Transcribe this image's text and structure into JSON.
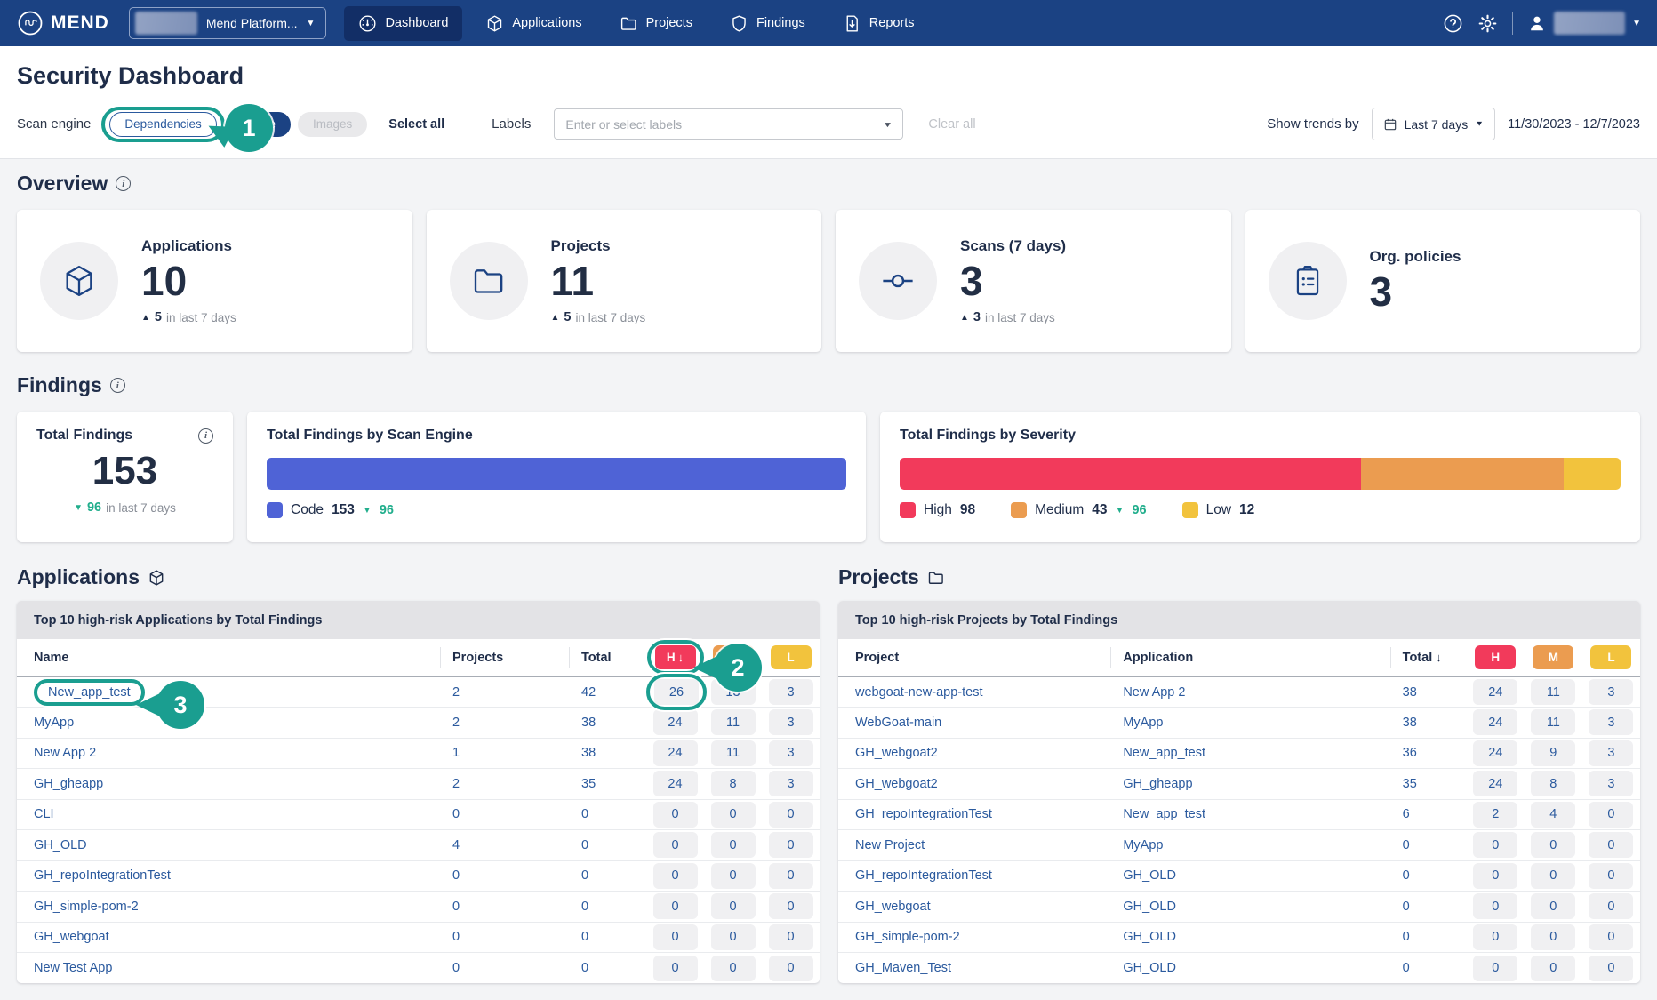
{
  "colors": {
    "navbar": "#1b4283",
    "accent_annotation": "#1a9e90",
    "high": "#f23a5b",
    "medium": "#eb9c50",
    "low": "#f2c33d",
    "engine_bar": "#4f63d6",
    "trend_green": "#21ae8c",
    "link": "#2b5a9e"
  },
  "navbar": {
    "logo_text": "MEND",
    "org_dropdown": {
      "label": "Mend Platform...",
      "redacted": true
    },
    "items": [
      {
        "label": "Dashboard",
        "icon": "gauge-icon",
        "active": true
      },
      {
        "label": "Applications",
        "icon": "cube-icon",
        "active": false
      },
      {
        "label": "Projects",
        "icon": "folder-icon",
        "active": false
      },
      {
        "label": "Findings",
        "icon": "shield-icon",
        "active": false
      },
      {
        "label": "Reports",
        "icon": "report-icon",
        "active": false
      }
    ],
    "help_icon": "help-icon",
    "settings_icon": "gear-icon",
    "user": {
      "icon": "user-icon",
      "name_redacted": true
    }
  },
  "page": {
    "title": "Security Dashboard"
  },
  "filters": {
    "scan_engine_label": "Scan engine",
    "engines": [
      {
        "label": "Dependencies",
        "state": "outlined"
      },
      {
        "label": "Code",
        "state": "selected"
      },
      {
        "label": "Images",
        "state": "disabled"
      }
    ],
    "select_all": "Select all",
    "labels_label": "Labels",
    "labels_placeholder": "Enter or select labels",
    "clear_all": "Clear all",
    "show_trends_by": "Show trends by",
    "trend_range": "Last 7 days",
    "date_range": "11/30/2023 - 12/7/2023"
  },
  "overview": {
    "title": "Overview",
    "trend_suffix": "in last 7 days",
    "cards": [
      {
        "label": "Applications",
        "value": "10",
        "trend": "5",
        "icon": "cube-icon"
      },
      {
        "label": "Projects",
        "value": "11",
        "trend": "5",
        "icon": "folder-icon"
      },
      {
        "label": "Scans (7 days)",
        "value": "3",
        "trend": "3",
        "icon": "commit-icon"
      },
      {
        "label": "Org. policies",
        "value": "3",
        "trend": null,
        "icon": "clipboard-icon"
      }
    ]
  },
  "findings": {
    "title": "Findings",
    "total_card": {
      "label": "Total Findings",
      "value": "153",
      "trend": "96",
      "trend_suffix": "in last 7 days"
    },
    "by_engine": {
      "title": "Total Findings by Scan Engine",
      "legend_label": "Code",
      "legend_value": "153",
      "trend": "96"
    },
    "by_severity": {
      "title": "Total Findings by Severity",
      "segments": [
        {
          "label": "High",
          "value": 98,
          "color": "#f23a5b",
          "trend": null
        },
        {
          "label": "Medium",
          "value": 43,
          "color": "#eb9c50",
          "trend": "96"
        },
        {
          "label": "Low",
          "value": 12,
          "color": "#f2c33d",
          "trend": null
        }
      ]
    }
  },
  "applications_section": {
    "title": "Applications",
    "icon": "cube-icon",
    "table_title": "Top 10 high-risk Applications by Total Findings",
    "columns": {
      "name": "Name",
      "projects": "Projects",
      "total": "Total",
      "h": "H",
      "m": "M",
      "l": "L"
    },
    "sorted_column": "h",
    "rows": [
      [
        "New_app_test",
        "2",
        "42",
        "26",
        "13",
        "3"
      ],
      [
        "MyApp",
        "2",
        "38",
        "24",
        "11",
        "3"
      ],
      [
        "New App 2",
        "1",
        "38",
        "24",
        "11",
        "3"
      ],
      [
        "GH_gheapp",
        "2",
        "35",
        "24",
        "8",
        "3"
      ],
      [
        "CLI",
        "0",
        "0",
        "0",
        "0",
        "0"
      ],
      [
        "GH_OLD",
        "4",
        "0",
        "0",
        "0",
        "0"
      ],
      [
        "GH_repoIntegrationTest",
        "0",
        "0",
        "0",
        "0",
        "0"
      ],
      [
        "GH_simple-pom-2",
        "0",
        "0",
        "0",
        "0",
        "0"
      ],
      [
        "GH_webgoat",
        "0",
        "0",
        "0",
        "0",
        "0"
      ],
      [
        "New Test App",
        "0",
        "0",
        "0",
        "0",
        "0"
      ]
    ]
  },
  "projects_section": {
    "title": "Projects",
    "icon": "folder-icon",
    "table_title": "Top 10 high-risk Projects by Total Findings",
    "columns": {
      "project": "Project",
      "application": "Application",
      "total": "Total",
      "h": "H",
      "m": "M",
      "l": "L"
    },
    "sorted_column": "total",
    "rows": [
      [
        "webgoat-new-app-test",
        "New App 2",
        "38",
        "24",
        "11",
        "3"
      ],
      [
        "WebGoat-main",
        "MyApp",
        "38",
        "24",
        "11",
        "3"
      ],
      [
        "GH_webgoat2",
        "New_app_test",
        "36",
        "24",
        "9",
        "3"
      ],
      [
        "GH_webgoat2",
        "GH_gheapp",
        "35",
        "24",
        "8",
        "3"
      ],
      [
        "GH_repoIntegrationTest",
        "New_app_test",
        "6",
        "2",
        "4",
        "0"
      ],
      [
        "New Project",
        "MyApp",
        "0",
        "0",
        "0",
        "0"
      ],
      [
        "GH_repoIntegrationTest",
        "GH_OLD",
        "0",
        "0",
        "0",
        "0"
      ],
      [
        "GH_webgoat",
        "GH_OLD",
        "0",
        "0",
        "0",
        "0"
      ],
      [
        "GH_simple-pom-2",
        "GH_OLD",
        "0",
        "0",
        "0",
        "0"
      ],
      [
        "GH_Maven_Test",
        "GH_OLD",
        "0",
        "0",
        "0",
        "0"
      ]
    ]
  },
  "annotations": {
    "markers": [
      "1",
      "2",
      "3"
    ]
  }
}
